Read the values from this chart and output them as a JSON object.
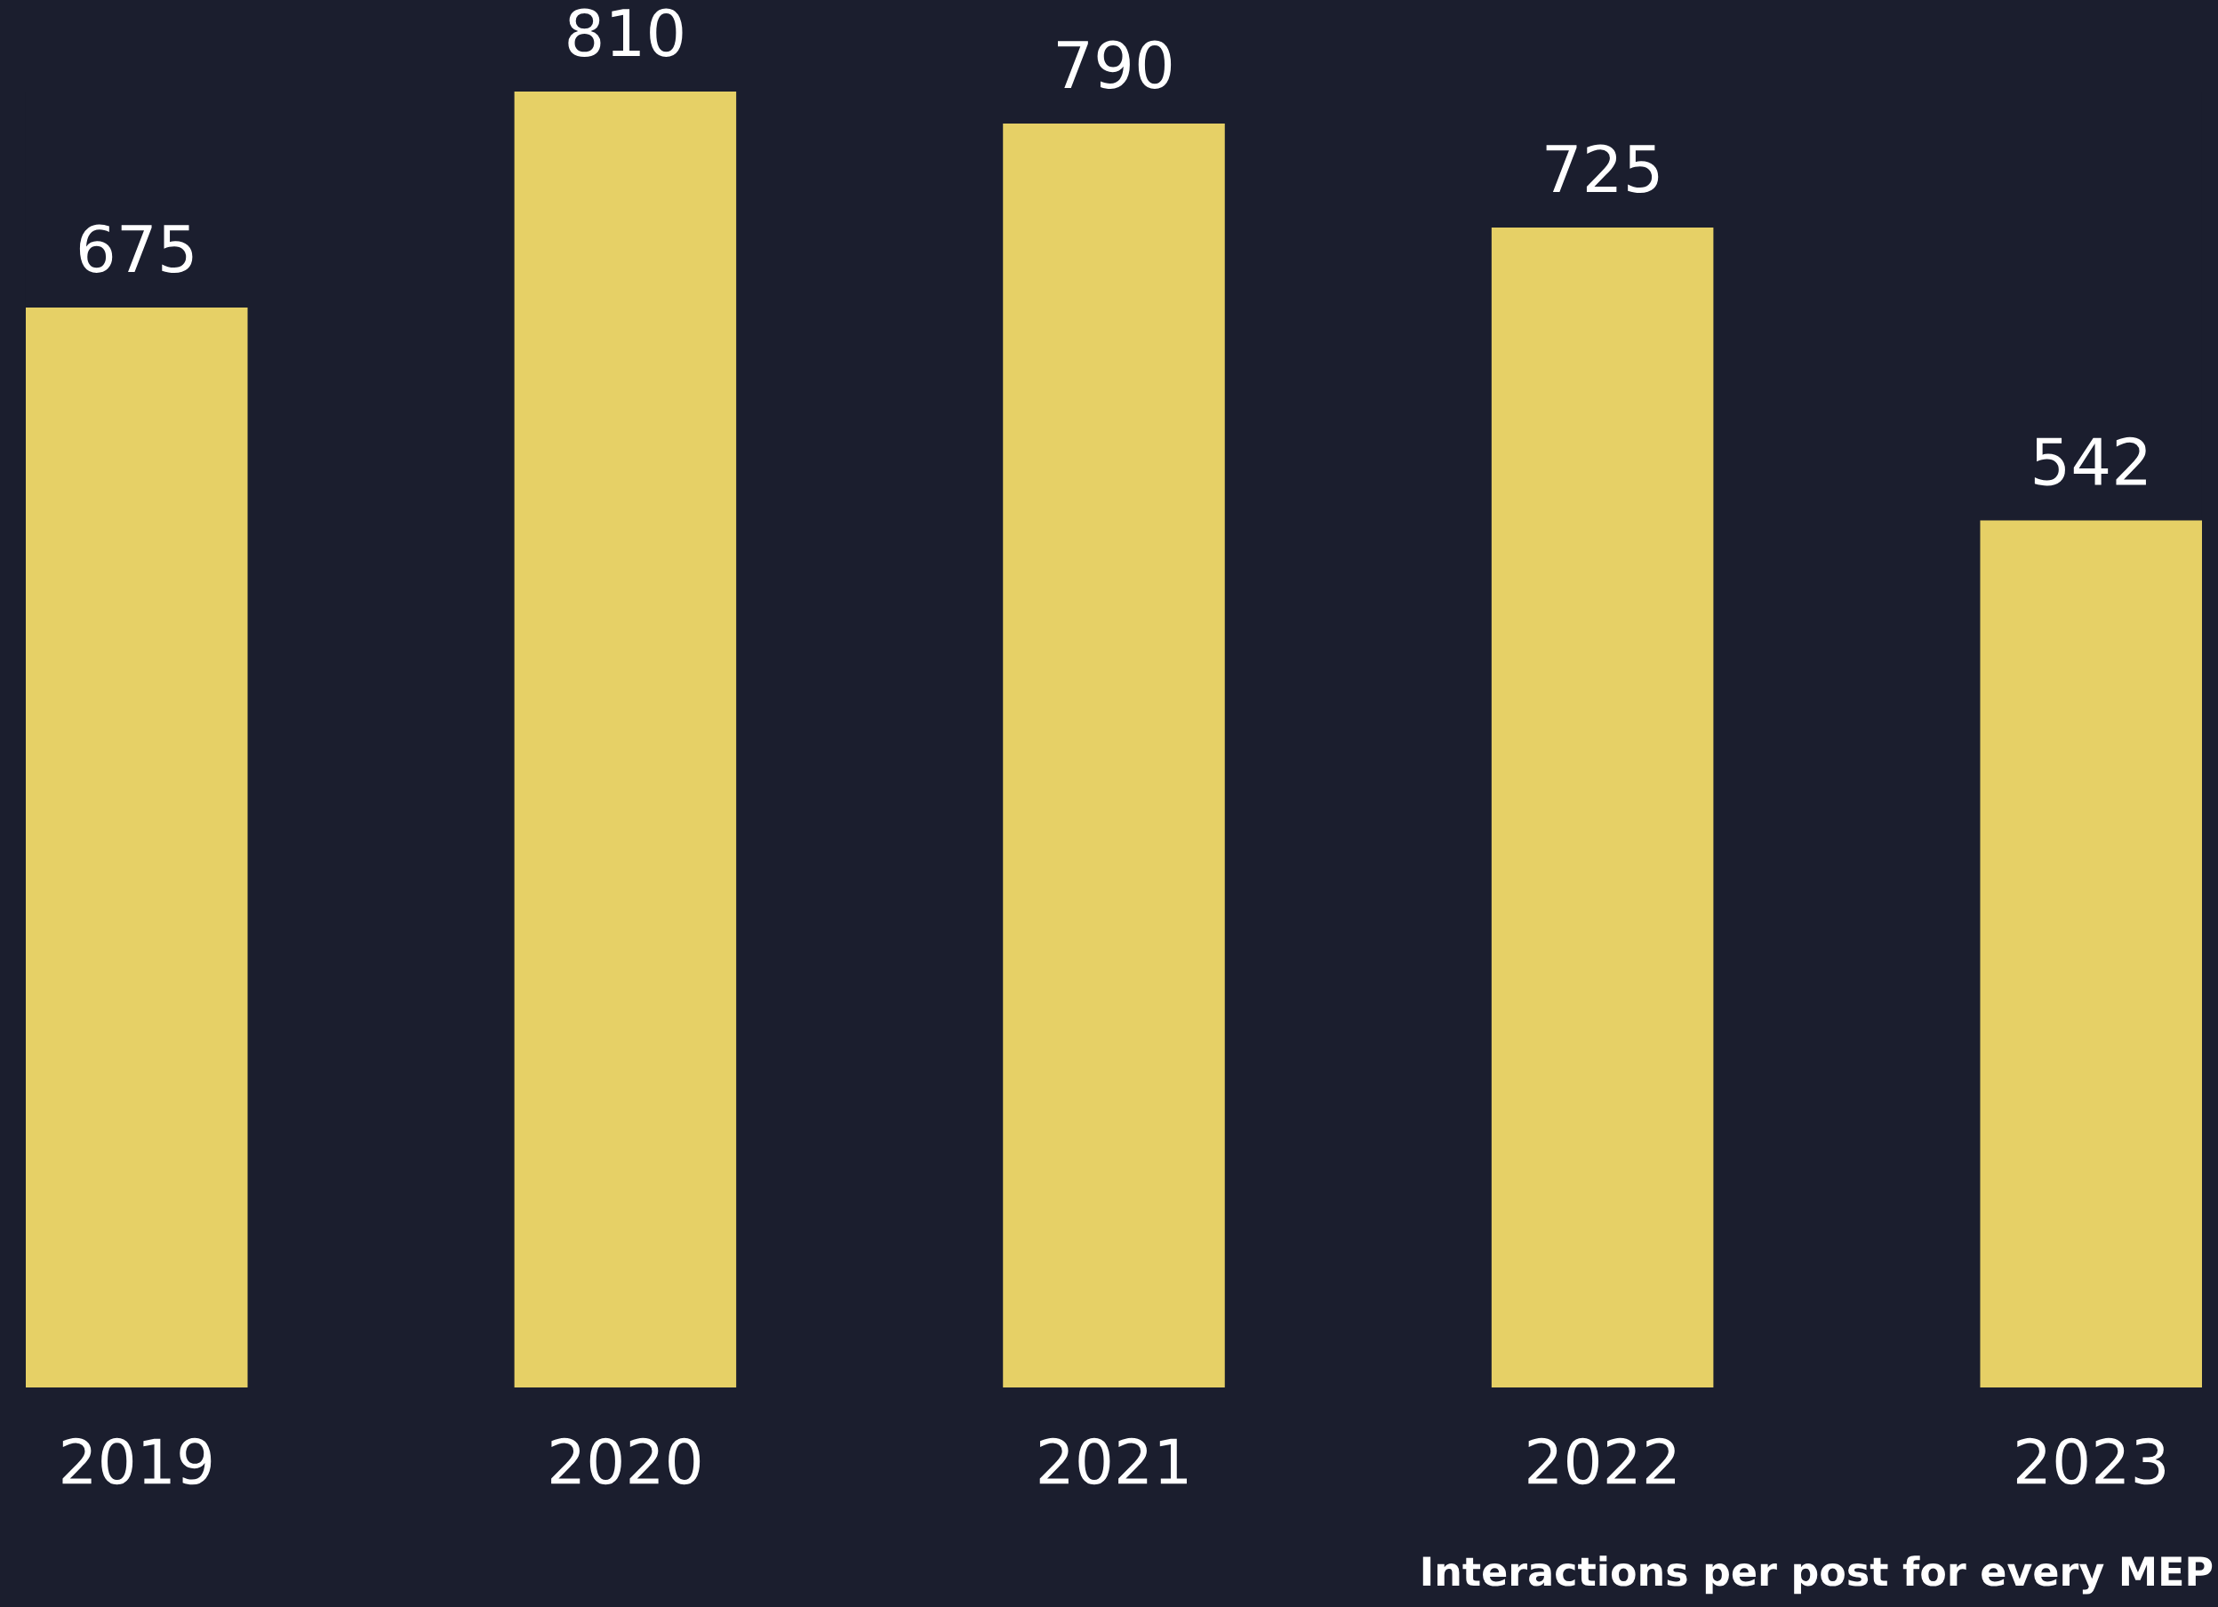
{
  "chart_data": {
    "type": "bar",
    "categories": [
      "2019",
      "2020",
      "2021",
      "2022",
      "2023"
    ],
    "values": [
      675,
      810,
      790,
      725,
      542
    ],
    "color": "#e6d066",
    "data_labels": true,
    "grid": false,
    "legend": false,
    "tick_labels": "x",
    "annotations": [
      "Interactions per post for every MEP"
    ]
  }
}
